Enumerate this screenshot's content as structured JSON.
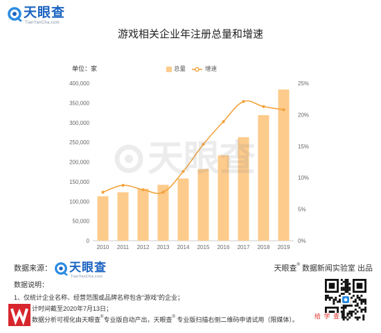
{
  "header": {
    "logo_text": "天眼查",
    "logo_sub": "TianYanCha.com"
  },
  "watermark": "天眼查",
  "colors": {
    "bar": "#FDCB8B",
    "line": "#F2A23A",
    "brand_blue": "#1C64C0",
    "icon_blue": "#2A8BE2",
    "publisher_red": "#D7262D",
    "qr_caption_red": "#E0302A",
    "axis_text": "#666666"
  },
  "icons": {
    "brand": "eye-logo-icon",
    "publisher": "publisher-logo-icon",
    "qr": "qr-code"
  },
  "chart_data": {
    "type": "bar",
    "title": "游戏相关企业年注册总量和增速",
    "ylabel": "单位：家",
    "categories": [
      "2010",
      "2011",
      "2012",
      "2013",
      "2014",
      "2015",
      "2016",
      "2017",
      "2018",
      "2019"
    ],
    "series": [
      {
        "name": "总量",
        "type": "bar",
        "axis": "left",
        "values": [
          113000,
          123000,
          132000,
          142000,
          158000,
          182000,
          217000,
          263000,
          319000,
          384000
        ]
      },
      {
        "name": "增速",
        "type": "line",
        "axis": "right",
        "unit": "%",
        "values": [
          7.7,
          8.8,
          8.1,
          7.7,
          11.0,
          15.3,
          18.9,
          22.1,
          21.3,
          20.8
        ]
      }
    ],
    "y_left": {
      "min": 0,
      "max": 400000,
      "ticks": [
        0,
        50000,
        100000,
        150000,
        200000,
        250000,
        300000,
        350000,
        400000
      ],
      "tick_labels": [
        "0",
        "50,000",
        "100,000",
        "150,000",
        "200,000",
        "250,000",
        "300,000",
        "350,000",
        "400,000"
      ]
    },
    "y_right": {
      "min": 0,
      "max": 25,
      "ticks": [
        0,
        5,
        10,
        15,
        20,
        25
      ],
      "tick_labels": [
        "0%",
        "5%",
        "10%",
        "15%",
        "20%",
        "25%"
      ]
    },
    "grid": false,
    "legend_position": "top"
  },
  "footer": {
    "source_label": "数据来源：",
    "source_logo_text": "天眼查",
    "source_logo_sub": "TianYanCha.com",
    "credit_brand": "天眼查",
    "credit_reg": "®",
    "credit_rest": "数据新闻实验室 出品",
    "notes_title": "数据说明：",
    "note1": "1、仅统计企业名称、经营范围或品牌名称包含“游戏”的企业；",
    "note2": "计时间截至2020年7月13日；",
    "note3": [
      "数据分析可视化由天眼查",
      "®",
      "专业版自动产出，天眼查",
      "®",
      " 专业版扫描右侧二维码申请试用（限媒体）。"
    ],
    "qr_caption": "给 学 查"
  }
}
